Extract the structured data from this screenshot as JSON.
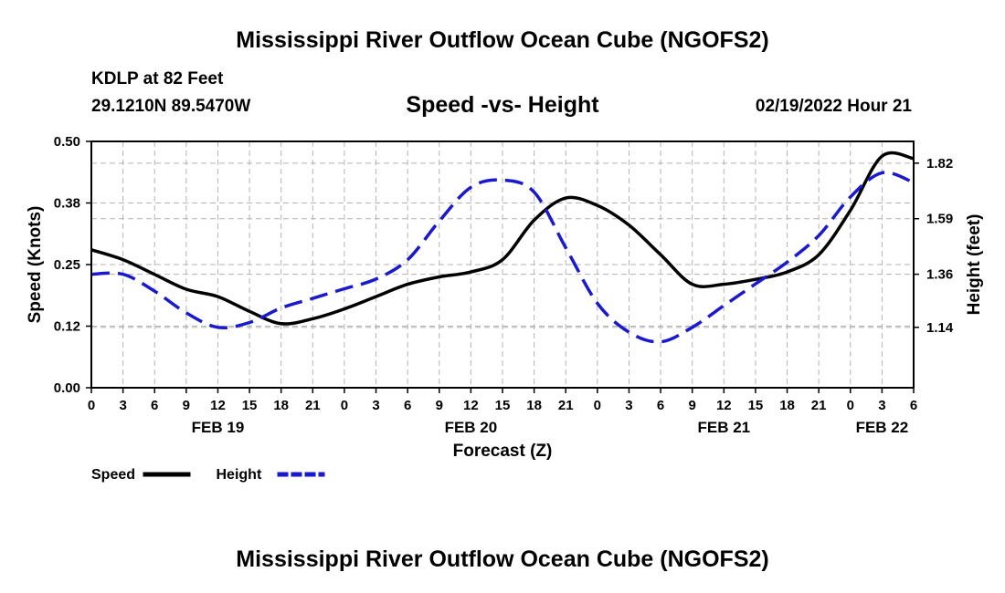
{
  "header": {
    "title": "Mississippi River Outflow Ocean Cube (NGOFS2)",
    "station": "KDLP at 82 Feet",
    "coords": "29.1210N  89.5470W",
    "subtitle": "Speed -vs- Height",
    "datetime": "02/19/2022 Hour 21"
  },
  "footer": {
    "title": "Mississippi River Outflow Ocean Cube (NGOFS2)"
  },
  "chart_data": {
    "type": "line",
    "title": "Speed -vs- Height",
    "xlabel": "Forecast (Z)",
    "ylabel": "Speed (Knots)",
    "y2label": "Height (feet)",
    "xlim": [
      0,
      78
    ],
    "ylim": [
      0,
      0.5
    ],
    "y2lim": [
      0.89,
      1.91
    ],
    "x_ticks": [
      0,
      3,
      6,
      9,
      12,
      15,
      18,
      21,
      24,
      27,
      30,
      33,
      36,
      39,
      42,
      45,
      48,
      51,
      54,
      57,
      60,
      63,
      66,
      69,
      72,
      75,
      78
    ],
    "x_tick_labels": [
      "0",
      "3",
      "6",
      "9",
      "12",
      "15",
      "18",
      "21",
      "0",
      "3",
      "6",
      "9",
      "12",
      "15",
      "18",
      "21",
      "0",
      "3",
      "6",
      "9",
      "12",
      "15",
      "18",
      "21",
      "0",
      "3",
      "6"
    ],
    "date_labels": [
      {
        "label": "FEB 19",
        "x": 12
      },
      {
        "label": "FEB 20",
        "x": 36
      },
      {
        "label": "FEB 21",
        "x": 60
      },
      {
        "label": "FEB 22",
        "x": 75
      }
    ],
    "y_ticks": [
      0,
      0.125,
      0.25,
      0.375,
      0.5
    ],
    "y_tick_labels": [
      "0.00",
      "0.12",
      "0.25",
      "0.38",
      "0.50"
    ],
    "y2_ticks": [
      1.14,
      1.36,
      1.59,
      1.82
    ],
    "y2_tick_labels": [
      "1.14",
      "1.36",
      "1.59",
      "1.82"
    ],
    "grid": true,
    "series": [
      {
        "name": "Speed",
        "axis": "left",
        "color": "#000000",
        "dash": "solid",
        "x": [
          0,
          3,
          6,
          9,
          12,
          15,
          18,
          21,
          24,
          27,
          30,
          33,
          36,
          39,
          42,
          45,
          48,
          51,
          54,
          57,
          60,
          63,
          66,
          69,
          72,
          75,
          78
        ],
        "values": [
          0.28,
          0.26,
          0.23,
          0.2,
          0.185,
          0.155,
          0.13,
          0.14,
          0.16,
          0.185,
          0.21,
          0.225,
          0.235,
          0.26,
          0.34,
          0.385,
          0.37,
          0.33,
          0.27,
          0.21,
          0.21,
          0.22,
          0.235,
          0.27,
          0.36,
          0.47,
          0.465
        ]
      },
      {
        "name": "Height",
        "axis": "right",
        "color": "#1a1acc",
        "dash": "dashed",
        "x": [
          0,
          3,
          6,
          9,
          12,
          15,
          18,
          21,
          24,
          27,
          30,
          33,
          36,
          39,
          42,
          45,
          48,
          51,
          54,
          57,
          60,
          63,
          66,
          69,
          72,
          75,
          78
        ],
        "values": [
          1.36,
          1.36,
          1.29,
          1.2,
          1.14,
          1.16,
          1.22,
          1.26,
          1.3,
          1.34,
          1.42,
          1.58,
          1.72,
          1.75,
          1.7,
          1.47,
          1.24,
          1.12,
          1.08,
          1.14,
          1.23,
          1.32,
          1.41,
          1.52,
          1.68,
          1.78,
          1.74
        ]
      }
    ],
    "legend": [
      {
        "label": "Speed",
        "color": "#000000",
        "dash": "solid"
      },
      {
        "label": "Height",
        "color": "#1a1acc",
        "dash": "dashed"
      }
    ],
    "legend_position": "bottom-left"
  }
}
